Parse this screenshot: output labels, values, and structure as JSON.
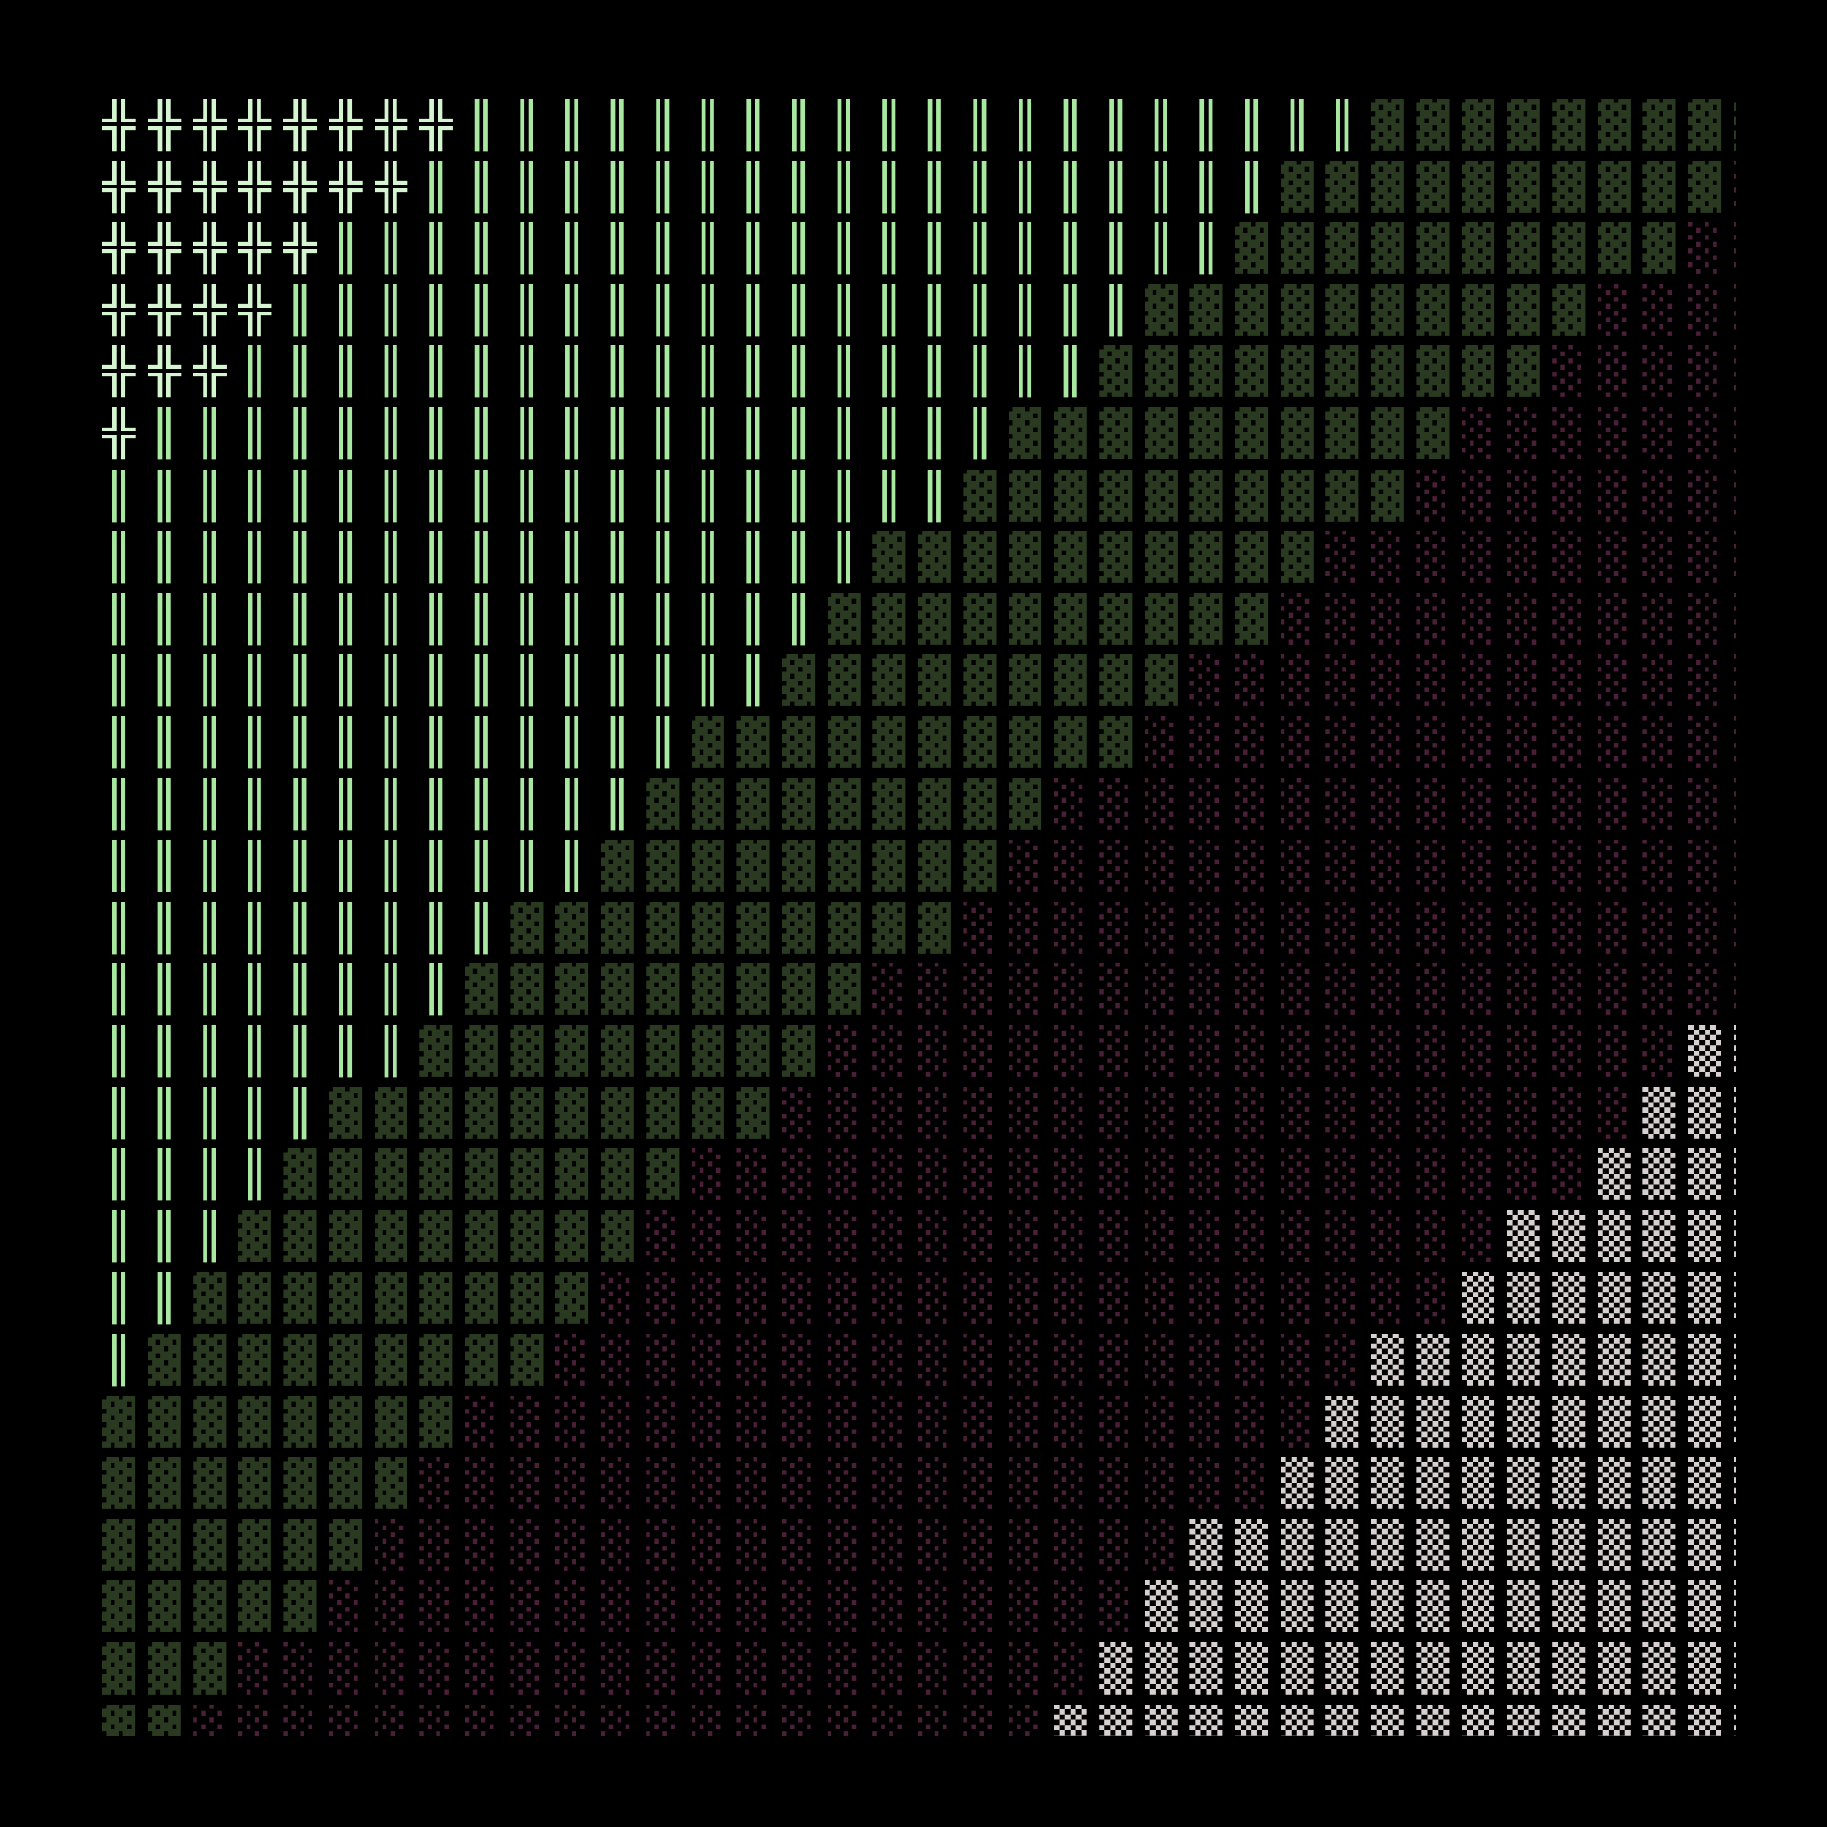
{
  "terminal": {
    "colors": {
      "╬": "#d4f5d0",
      "║": "#a8e8a0",
      "▓": "#2a3a20",
      "░": "#4a1f38",
      "▒": "#d8d0d0",
      "background": "#000000"
    },
    "rows": [
      "╬╬╬╬╬╬╬╬║║║║║║║║║║║║║║║║║║║║▓▓▓▓▓▓▓▓▓",
      "╬╬╬╬╬╬╬║║║║║║║║║║║║║║║║║║║▓▓▓▓▓▓▓▓▓▓░",
      "╬╬╬╬╬║║║║║║║║║║║║║║║║║║║║▓▓▓▓▓▓▓▓▓▓░░",
      "╬╬╬╬║║║║║║║║║║║║║║║║║║║▓▓▓▓▓▓▓▓▓▓░░░░",
      "╬╬╬║║║║║║║║║║║║║║║║║║║▓▓▓▓▓▓▓▓▓▓░░░░░",
      "╬║║║║║║║║║║║║║║║║║║║▓▓▓▓▓▓▓▓▓▓░░░░░░░",
      "║║║║║║║║║║║║║║║║║║║▓▓▓▓▓▓▓▓▓▓░░░░░░░░",
      "║║║║║║║║║║║║║║║║║▓▓▓▓▓▓▓▓▓▓░░░░░░░░░░",
      "║║║║║║║║║║║║║║║║▓▓▓▓▓▓▓▓▓▓░░░░░░░░░░░",
      "║║║║║║║║║║║║║║║▓▓▓▓▓▓▓▓▓░░░░░░░░░░░░░",
      "║║║║║║║║║║║║║▓▓▓▓▓▓▓▓▓▓░░░░░░░░░░░░░░",
      "║║║║║║║║║║║║▓▓▓▓▓▓▓▓▓░░░░░░░░░░░░░░░░",
      "║║║║║║║║║║║▓▓▓▓▓▓▓▓▓░░░░░░░░░░░░░░░░░",
      "║║║║║║║║║▓▓▓▓▓▓▓▓▓▓░░░░░░░░░░░░░░░░░░",
      "║║║║║║║║▓▓▓▓▓▓▓▓▓░░░░░░░░░░░░░░░░░░░░",
      "║║║║║║║▓▓▓▓▓▓▓▓▓░░░░░░░░░░░░░░░░░░░▒▒",
      "║║║║║▓▓▓▓▓▓▓▓▓▓░░░░░░░░░░░░░░░░░░░▒▒▒",
      "║║║║▓▓▓▓▓▓▓▓▓░░░░░░░░░░░░░░░░░░░░▒▒▒▒",
      "║║║▓▓▓▓▓▓▓▓▓░░░░░░░░░░░░░░░░░░░▒▒▒▒▒▒",
      "║║▓▓▓▓▓▓▓▓▓░░░░░░░░░░░░░░░░░░░▒▒▒▒▒▒▒",
      "║▓▓▓▓▓▓▓▓▓░░░░░░░░░░░░░░░░░░▒▒▒▒▒▒▒▒▒",
      "▓▓▓▓▓▓▓▓░░░░░░░░░░░░░░░░░░░▒▒▒▒▒▒▒▒▒▒",
      "▓▓▓▓▓▓▓░░░░░░░░░░░░░░░░░░░▒▒▒▒▒▒▒▒▒▒▒",
      "▓▓▓▓▓▓░░░░░░░░░░░░░░░░░░▒▒▒▒▒▒▒▒▒▒▒▒▒",
      "▓▓▓▓▓░░░░░░░░░░░░░░░░░░▒▒▒▒▒▒▒▒▒▒▒▒▒▒",
      "▓▓▓░░░░░░░░░░░░░░░░░░░▒▒▒▒▒▒▒▒▒▒▒▒▒▒▒",
      "▓▓░░░░░░░░░░░░░░░░░░░▒▒▒▒▒▒▒▒▒▒▒▒▒▒▒▒"
    ]
  }
}
